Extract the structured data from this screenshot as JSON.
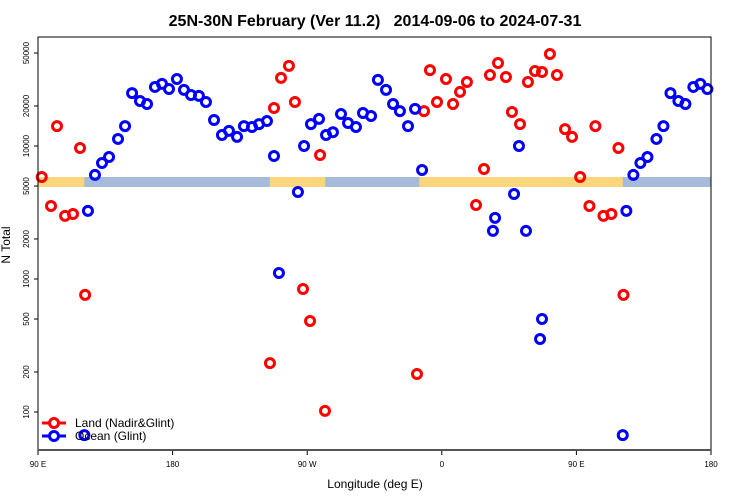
{
  "chart_data": {
    "type": "scatter",
    "title": "25N-30N February (Ver 11.2)   2014-09-06 to 2024-07-31",
    "xlabel": "Longitude (deg E)",
    "ylabel": "N Total",
    "y_scale": "log",
    "ylim": [
      52,
      66000
    ],
    "xlim_unwrapped_deg": [
      90,
      540
    ],
    "x_ticks": [
      {
        "value": 90,
        "label": "90 E"
      },
      {
        "value": 180,
        "label": "180"
      },
      {
        "value": 270,
        "label": "90 W"
      },
      {
        "value": 360,
        "label": "0"
      },
      {
        "value": 450,
        "label": "90 E"
      },
      {
        "value": 540,
        "label": "180"
      }
    ],
    "y_ticks": [
      100,
      200,
      500,
      1000,
      2000,
      5000,
      10000,
      20000,
      50000
    ],
    "y_tick_labels": [
      "100",
      "200",
      "500",
      "1000",
      "2000",
      "5000",
      "10000",
      "20000",
      "50000"
    ],
    "legend": {
      "placement": "bottom-left",
      "entries": [
        "Land (Nadir&Glint)",
        "Ocean (Glint)"
      ]
    },
    "land_mask_deg_e": [
      [
        -115,
        -78
      ],
      [
        -15,
        121
      ]
    ],
    "colors": {
      "land": "#FF0000",
      "ocean": "#0000FF",
      "mask_land": "#FCD67C",
      "mask_ocean": "#A6BBDA"
    },
    "series": [
      {
        "name": "Land (Nadir&Glint)",
        "color": "#FF0000",
        "points": [
          [
            92.5,
            5850
          ],
          [
            98.7,
            3540
          ],
          [
            102.7,
            14100
          ],
          [
            108.1,
            2980
          ],
          [
            113.4,
            3080
          ],
          [
            118.1,
            9660
          ],
          [
            121.5,
            759
          ],
          [
            -114.9,
            233
          ],
          [
            -112.2,
            19300
          ],
          [
            -107.5,
            32500
          ],
          [
            -102.2,
            40000
          ],
          [
            -98.2,
            21400
          ],
          [
            -92.8,
            841
          ],
          [
            -88.1,
            483
          ],
          [
            -81.4,
            8550
          ],
          [
            -78.1,
            102
          ],
          [
            -16.6,
            193
          ],
          [
            -11.9,
            18300
          ],
          [
            -7.9,
            37200
          ],
          [
            -3.2,
            21400
          ],
          [
            2.8,
            31900
          ],
          [
            7.5,
            20700
          ],
          [
            12.2,
            25500
          ],
          [
            16.8,
            30300
          ],
          [
            22.9,
            3600
          ],
          [
            28.2,
            6720
          ],
          [
            32.2,
            34200
          ],
          [
            37.6,
            42100
          ],
          [
            42.9,
            33000
          ],
          [
            46.9,
            18000
          ],
          [
            52.3,
            14600
          ],
          [
            57.6,
            30300
          ],
          [
            62.3,
            36600
          ],
          [
            67.0,
            36000
          ],
          [
            72.3,
            49200
          ],
          [
            77.0,
            34200
          ],
          [
            82.4,
            13400
          ],
          [
            87.1,
            11700
          ]
        ]
      },
      {
        "name": "Ocean (Glint)",
        "color": "#0000FF",
        "points": [
          [
            121.0,
            67
          ],
          [
            123.4,
            3250
          ],
          [
            128.1,
            6060
          ],
          [
            132.8,
            7450
          ],
          [
            137.5,
            8270
          ],
          [
            143.5,
            11300
          ],
          [
            148.2,
            14100
          ],
          [
            152.9,
            25000
          ],
          [
            158.2,
            21800
          ],
          [
            162.9,
            20700
          ],
          [
            168.2,
            27800
          ],
          [
            172.9,
            29300
          ],
          [
            177.6,
            26800
          ],
          [
            -177.1,
            31900
          ],
          [
            -172.4,
            26400
          ],
          [
            -167.7,
            24200
          ],
          [
            -162.4,
            23800
          ],
          [
            -157.7,
            21400
          ],
          [
            -152.3,
            15700
          ],
          [
            -147.0,
            12100
          ],
          [
            -142.3,
            13000
          ],
          [
            -136.9,
            11700
          ],
          [
            -132.3,
            14100
          ],
          [
            -126.9,
            13900
          ],
          [
            -122.2,
            14600
          ],
          [
            -116.9,
            15400
          ],
          [
            -112.2,
            8410
          ],
          [
            -108.9,
            1110
          ],
          [
            -96.2,
            4510
          ],
          [
            -92.1,
            10000
          ],
          [
            -87.5,
            14600
          ],
          [
            -82.1,
            16000
          ],
          [
            -77.4,
            12100
          ],
          [
            -72.8,
            12700
          ],
          [
            -67.4,
            17400
          ],
          [
            -62.7,
            14900
          ],
          [
            -57.4,
            13900
          ],
          [
            -52.7,
            17700
          ],
          [
            -47.3,
            16800
          ],
          [
            -42.7,
            31400
          ],
          [
            -37.3,
            26400
          ],
          [
            -32.6,
            20700
          ],
          [
            -28.0,
            18300
          ],
          [
            -22.6,
            14100
          ],
          [
            -17.9,
            19000
          ],
          [
            -13.2,
            6600
          ],
          [
            34.2,
            2300
          ],
          [
            35.6,
            2880
          ],
          [
            48.3,
            4360
          ],
          [
            51.6,
            10000
          ],
          [
            56.3,
            2300
          ],
          [
            65.7,
            354
          ],
          [
            67.0,
            500
          ]
        ]
      }
    ]
  }
}
